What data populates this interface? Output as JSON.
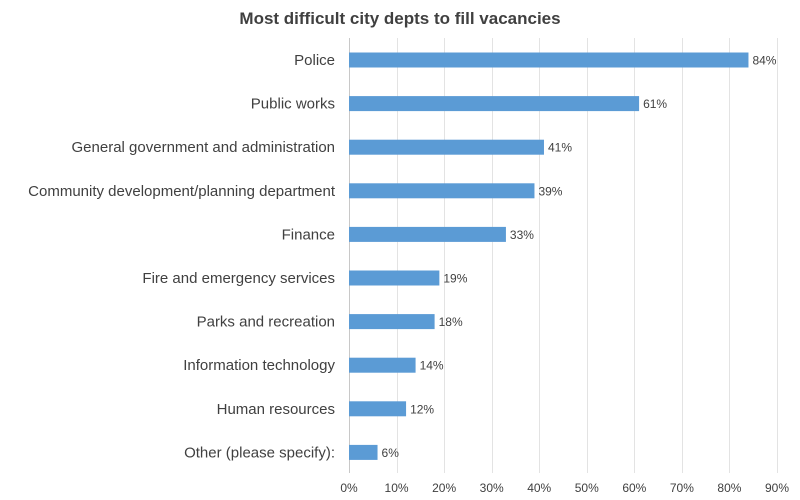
{
  "chart_data": {
    "type": "bar",
    "orientation": "horizontal",
    "title": "Most difficult city depts to fill vacancies",
    "categories": [
      "Police",
      "Public works",
      "General government and administration",
      "Community development/planning department",
      "Finance",
      "Fire and emergency services",
      "Parks and recreation",
      "Information technology",
      "Human resources",
      "Other (please specify):"
    ],
    "values": [
      84,
      61,
      41,
      39,
      33,
      19,
      18,
      14,
      12,
      6
    ],
    "data_labels": [
      "84%",
      "61%",
      "41%",
      "39%",
      "33%",
      "19%",
      "18%",
      "14%",
      "12%",
      "6%"
    ],
    "xlim": [
      0,
      90
    ],
    "xticks": [
      0,
      10,
      20,
      30,
      40,
      50,
      60,
      70,
      80,
      90
    ],
    "xtick_labels": [
      "0%",
      "10%",
      "20%",
      "30%",
      "40%",
      "50%",
      "60%",
      "70%",
      "80%",
      "90%"
    ],
    "grid": true,
    "legend": "none",
    "bar_color": "#5b9bd5"
  }
}
